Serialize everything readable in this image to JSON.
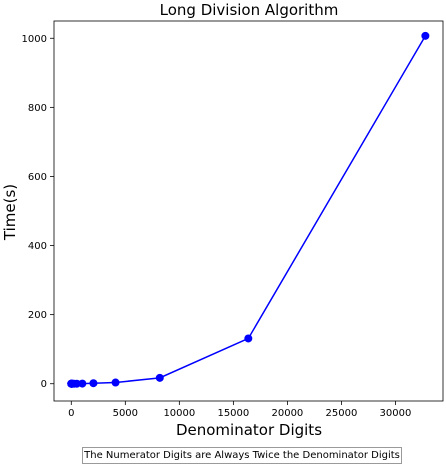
{
  "chart_data": {
    "type": "line",
    "title": "Long Division Algorithm",
    "xlabel": "Denominator Digits",
    "ylabel": "Time(s)",
    "caption": "The Numerator Digits are Always Twice the Denominator Digits",
    "xlim": [
      -1600,
      34400
    ],
    "ylim": [
      -50,
      1050
    ],
    "x_ticks": [
      0,
      5000,
      10000,
      15000,
      20000,
      25000,
      30000
    ],
    "y_ticks": [
      0,
      200,
      400,
      600,
      800,
      1000
    ],
    "grid": false,
    "legend": "none",
    "series": [
      {
        "color": "#0000ff",
        "marker": "circle",
        "x": [
          1,
          2,
          4,
          8,
          16,
          32,
          64,
          128,
          256,
          512,
          1024,
          2048,
          4096,
          8192,
          16384,
          32768
        ],
        "y": [
          0,
          0,
          0,
          0,
          0,
          0,
          0,
          0,
          0.02,
          0.1,
          0.4,
          1.5,
          3.5,
          17,
          131,
          1007
        ]
      }
    ]
  }
}
